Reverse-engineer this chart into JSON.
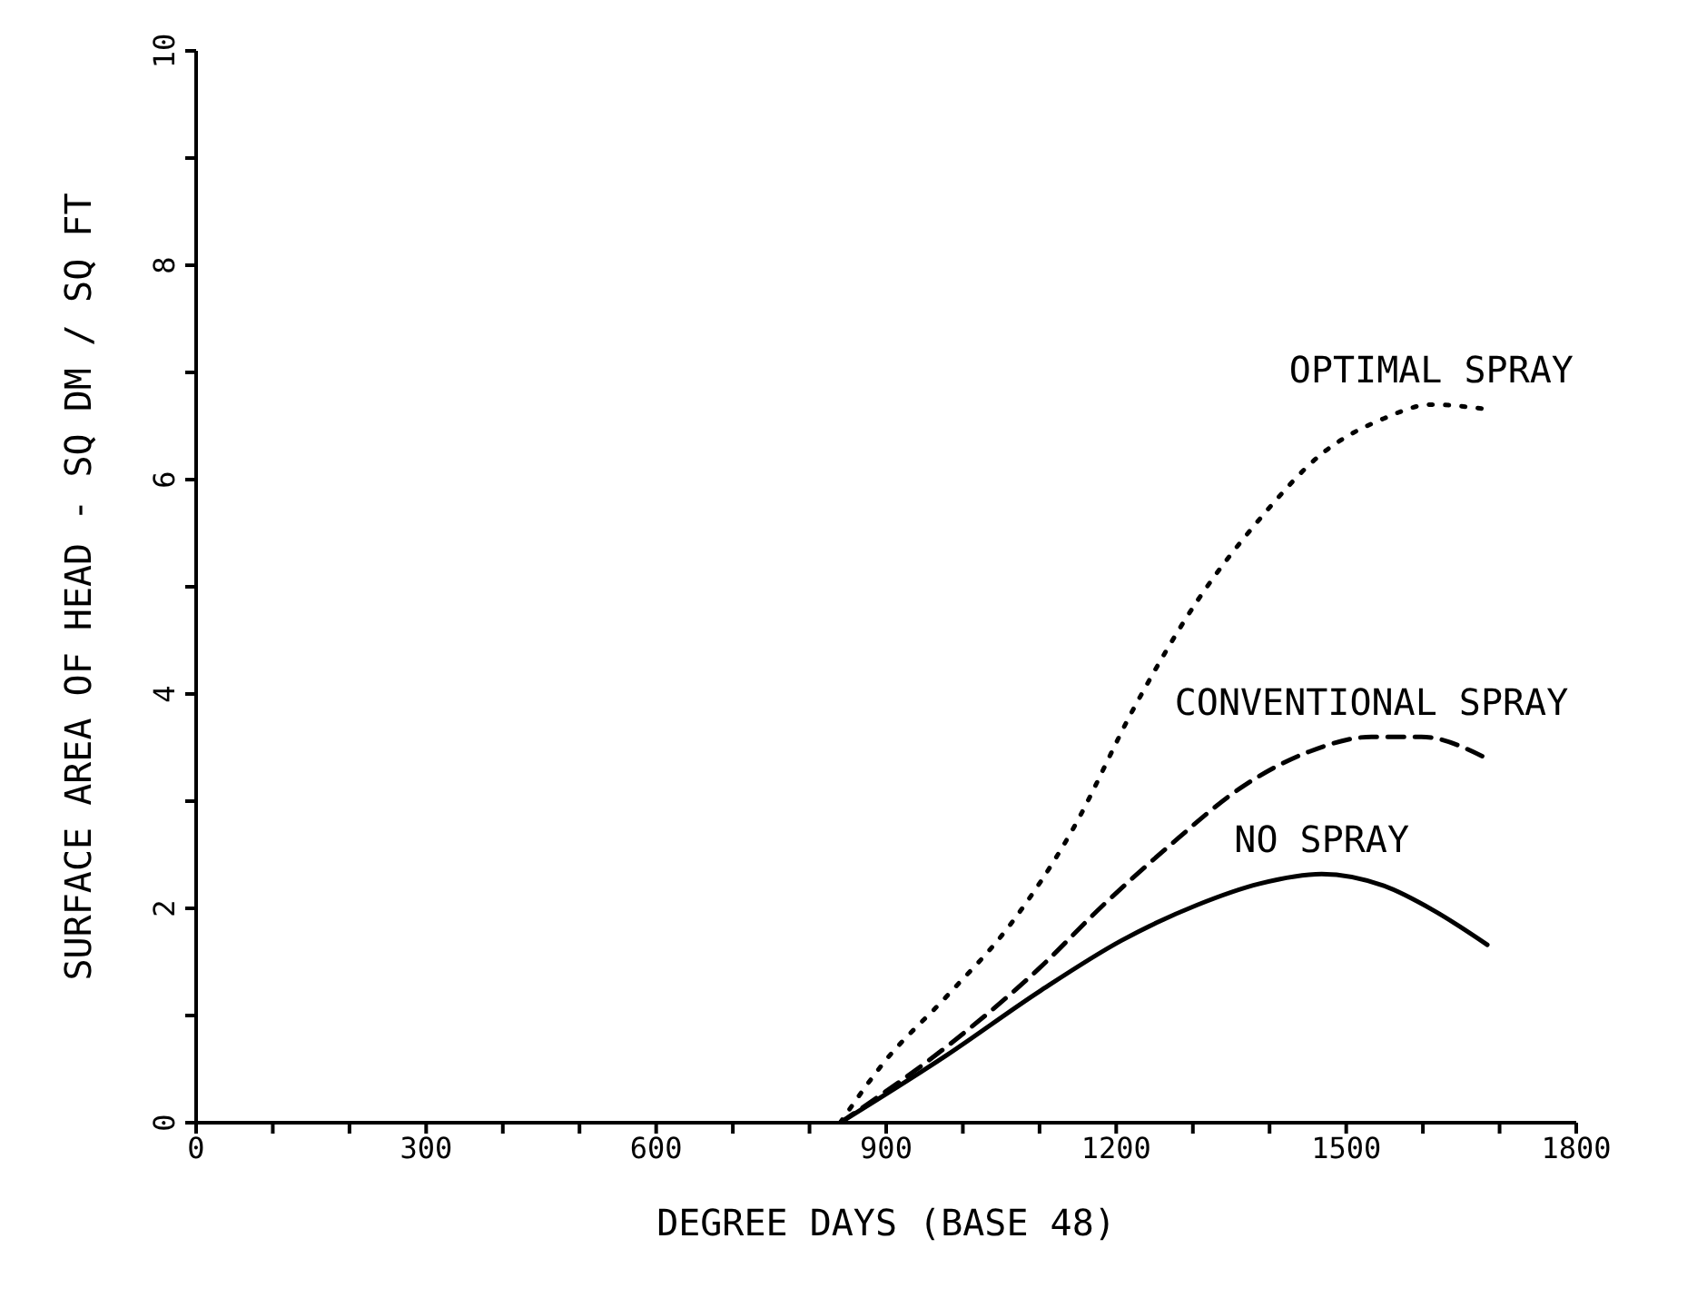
{
  "chart_data": {
    "type": "line",
    "xlabel": "DEGREE DAYS (BASE 48)",
    "ylabel": "SURFACE AREA OF HEAD - SQ DM / SQ FT",
    "xlim": [
      0,
      1800
    ],
    "ylim": [
      0,
      10
    ],
    "xticks": [
      0,
      {
        "value": 100,
        "label": null
      },
      {
        "value": 200,
        "label": null
      },
      300,
      {
        "value": 400,
        "label": null
      },
      {
        "value": 500,
        "label": null
      },
      600,
      {
        "value": 700,
        "label": null
      },
      {
        "value": 800,
        "label": null
      },
      900,
      {
        "value": 1000,
        "label": null
      },
      {
        "value": 1100,
        "label": null
      },
      1200,
      {
        "value": 1300,
        "label": null
      },
      {
        "value": 1400,
        "label": null
      },
      1500,
      {
        "value": 1600,
        "label": null
      },
      {
        "value": 1700,
        "label": null
      },
      1800
    ],
    "yticks": [
      0,
      {
        "value": 1,
        "label": null
      },
      2,
      {
        "value": 3,
        "label": null
      },
      4,
      {
        "value": 5,
        "label": null
      },
      6,
      {
        "value": 7,
        "label": null
      },
      8,
      {
        "value": 9,
        "label": null
      },
      10
    ],
    "grid": false,
    "legend": false,
    "marker": "none",
    "series": [
      {
        "name": "OPTIMAL SPRAY",
        "color": "#000000",
        "line_style": "dotted",
        "x": [
          840,
          898,
          979,
          1061,
          1142,
          1224,
          1305,
          1387,
          1468,
          1549,
          1611,
          1680
        ],
        "values": [
          0,
          0.57,
          1.18,
          1.84,
          2.72,
          3.88,
          4.86,
          5.63,
          6.24,
          6.57,
          6.7,
          6.66
        ]
      },
      {
        "name": "CONVENTIONAL SPRAY",
        "color": "#000000",
        "line_style": "dashed",
        "x": [
          840,
          979,
          1101,
          1183,
          1264,
          1370,
          1451,
          1533,
          1598,
          1680
        ],
        "values": [
          0,
          0.71,
          1.45,
          2.03,
          2.55,
          3.16,
          3.46,
          3.6,
          3.6,
          3.41
        ]
      },
      {
        "name": "NO SPRAY",
        "color": "#000000",
        "line_style": "solid",
        "x": [
          840,
          979,
          1101,
          1207,
          1305,
          1387,
          1468,
          1549,
          1614,
          1684
        ],
        "values": [
          0,
          0.63,
          1.23,
          1.7,
          2.03,
          2.23,
          2.32,
          2.21,
          1.98,
          1.66
        ]
      }
    ]
  }
}
